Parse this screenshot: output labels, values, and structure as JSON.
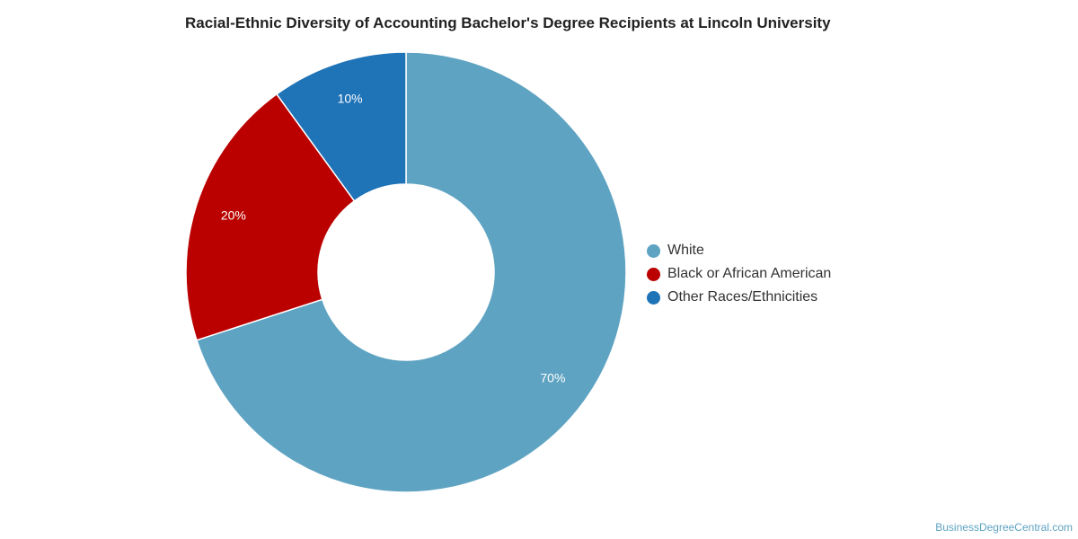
{
  "chart_data": {
    "type": "pie",
    "variant": "donut",
    "title": "Racial-Ethnic Diversity of Accounting Bachelor's Degree Recipients at Lincoln University",
    "categories": [
      "White",
      "Black or African American",
      "Other Races/Ethnicities"
    ],
    "values": [
      70,
      20,
      10
    ],
    "data_labels": [
      "70%",
      "20%",
      "10%"
    ],
    "colors": [
      "#5ea3c2",
      "#bb0000",
      "#1f73b7"
    ],
    "legend_position": "right"
  },
  "footer": {
    "watermark": "BusinessDegreeCentral.com"
  }
}
